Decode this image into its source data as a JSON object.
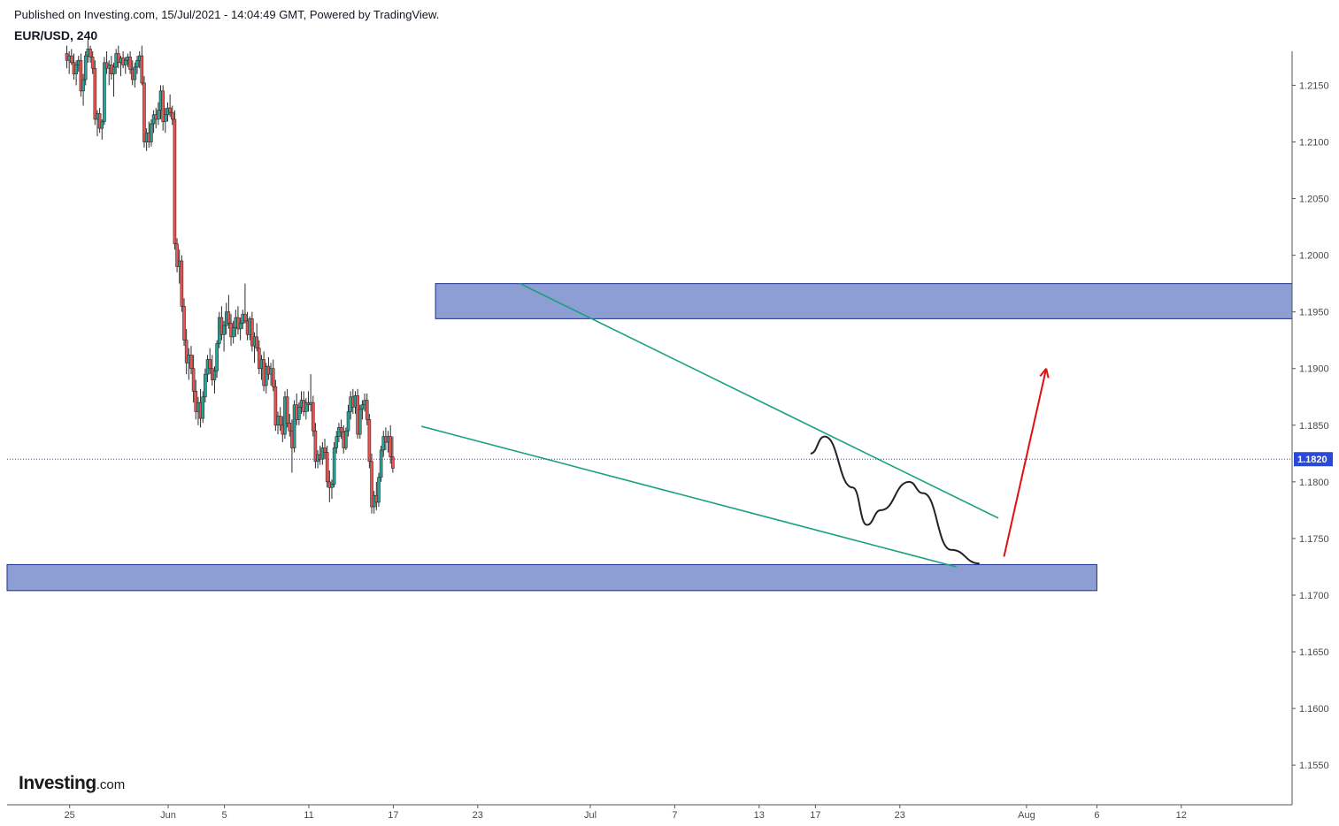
{
  "header": {
    "published": "Published on Investing.com, 15/Jul/2021 - 14:04:49 GMT, Powered by TradingView.",
    "symbol": "EUR/USD, 240"
  },
  "logo": {
    "main": "Investing",
    "suffix": ".com"
  },
  "colors": {
    "up": "#26a69a",
    "down": "#ef5350",
    "zone_fill": "#8c9ed3",
    "zone_stroke": "#1f2e8a",
    "trendline": "#1ea083",
    "projection": "#222222",
    "arrow": "#e01010",
    "price_line": "#2a49d6",
    "price_tag": "#2a49d6"
  },
  "chart_data": {
    "type": "candlestick",
    "title": "EUR/USD, 240",
    "ylim": [
      1.1515,
      1.218
    ],
    "y_ticks": [
      "1.2150",
      "1.2100",
      "1.2050",
      "1.2000",
      "1.1950",
      "1.1900",
      "1.1850",
      "1.1800",
      "1.1750",
      "1.1700",
      "1.1650",
      "1.1600",
      "1.1550"
    ],
    "x_ticks": [
      "25",
      "Jun",
      "5",
      "11",
      "17",
      "23",
      "Jul",
      "7",
      "13",
      "17",
      "23",
      "Aug",
      "6",
      "12"
    ],
    "last_price": "1.1820",
    "zones": [
      {
        "from": "Jun 20",
        "to": "end",
        "low": 1.1944,
        "high": 1.1975
      },
      {
        "from": "start",
        "to": "Aug 6",
        "low": 1.1704,
        "high": 1.1727
      }
    ],
    "trendlines": [
      {
        "from": [
          "Jun 26",
          1.1975
        ],
        "to": [
          "Jul 30",
          1.1768
        ]
      },
      {
        "from": [
          "Jun 19",
          1.1849
        ],
        "to": [
          "Jul 27",
          1.1725
        ]
      }
    ],
    "candles": [
      [
        1.2178,
        1.2185,
        1.2165,
        1.2172
      ],
      [
        1.2172,
        1.218,
        1.216,
        1.2176
      ],
      [
        1.2176,
        1.2182,
        1.2168,
        1.217
      ],
      [
        1.217,
        1.2178,
        1.2155,
        1.216
      ],
      [
        1.216,
        1.2172,
        1.215,
        1.2168
      ],
      [
        1.2168,
        1.2176,
        1.2162,
        1.2172
      ],
      [
        1.2172,
        1.2178,
        1.214,
        1.2145
      ],
      [
        1.2145,
        1.216,
        1.2132,
        1.2155
      ],
      [
        1.2155,
        1.218,
        1.215,
        1.2176
      ],
      [
        1.2176,
        1.219,
        1.217,
        1.2182
      ],
      [
        1.2182,
        1.2185,
        1.217,
        1.2175
      ],
      [
        1.2175,
        1.218,
        1.216,
        1.2165
      ],
      [
        1.2165,
        1.2172,
        1.2115,
        1.212
      ],
      [
        1.212,
        1.2128,
        1.2105,
        1.2125
      ],
      [
        1.2125,
        1.213,
        1.2108,
        1.2112
      ],
      [
        1.2112,
        1.212,
        1.2102,
        1.2118
      ],
      [
        1.2118,
        1.2175,
        1.2115,
        1.217
      ],
      [
        1.217,
        1.218,
        1.216,
        1.2165
      ],
      [
        1.2165,
        1.2172,
        1.215,
        1.2168
      ],
      [
        1.2168,
        1.2176,
        1.2155,
        1.216
      ],
      [
        1.216,
        1.217,
        1.214,
        1.2166
      ],
      [
        1.2166,
        1.2182,
        1.216,
        1.2178
      ],
      [
        1.2178,
        1.2185,
        1.2165,
        1.217
      ],
      [
        1.217,
        1.2176,
        1.2158,
        1.2174
      ],
      [
        1.2174,
        1.218,
        1.2165,
        1.2168
      ],
      [
        1.2168,
        1.2175,
        1.216,
        1.2172
      ],
      [
        1.2172,
        1.2178,
        1.2166,
        1.2175
      ],
      [
        1.2175,
        1.218,
        1.216,
        1.2164
      ],
      [
        1.2164,
        1.2172,
        1.215,
        1.2155
      ],
      [
        1.2155,
        1.217,
        1.2148,
        1.2166
      ],
      [
        1.2166,
        1.2176,
        1.216,
        1.2172
      ],
      [
        1.2172,
        1.218,
        1.2165,
        1.2176
      ],
      [
        1.2176,
        1.2185,
        1.215,
        1.2152
      ],
      [
        1.2152,
        1.2158,
        1.2095,
        1.21
      ],
      [
        1.21,
        1.2112,
        1.2092,
        1.2108
      ],
      [
        1.2108,
        1.2118,
        1.2095,
        1.21
      ],
      [
        1.21,
        1.212,
        1.2096,
        1.2116
      ],
      [
        1.2116,
        1.2128,
        1.2108,
        1.2124
      ],
      [
        1.2124,
        1.213,
        1.2112,
        1.212
      ],
      [
        1.212,
        1.2135,
        1.2115,
        1.2128
      ],
      [
        1.2128,
        1.215,
        1.212,
        1.2145
      ],
      [
        1.2145,
        1.215,
        1.211,
        1.2118
      ],
      [
        1.2118,
        1.213,
        1.2108,
        1.2124
      ],
      [
        1.2124,
        1.2135,
        1.2118,
        1.213
      ],
      [
        1.213,
        1.2142,
        1.2122,
        1.2126
      ],
      [
        1.2126,
        1.2132,
        1.2115,
        1.212
      ],
      [
        1.212,
        1.2128,
        1.2005,
        1.201
      ],
      [
        1.201,
        1.2015,
        1.1985,
        1.199
      ],
      [
        1.199,
        1.2005,
        1.1975,
        1.1995
      ],
      [
        1.1995,
        1.2,
        1.195,
        1.1955
      ],
      [
        1.1955,
        1.1962,
        1.192,
        1.1925
      ],
      [
        1.1925,
        1.1935,
        1.1895,
        1.1905
      ],
      [
        1.1905,
        1.1918,
        1.189,
        1.1912
      ],
      [
        1.1912,
        1.192,
        1.1895,
        1.19
      ],
      [
        1.19,
        1.1912,
        1.187,
        1.188
      ],
      [
        1.188,
        1.189,
        1.1855,
        1.1862
      ],
      [
        1.1862,
        1.1875,
        1.185,
        1.187
      ],
      [
        1.187,
        1.1882,
        1.1848,
        1.1856
      ],
      [
        1.1856,
        1.188,
        1.1852,
        1.1875
      ],
      [
        1.1875,
        1.19,
        1.187,
        1.1895
      ],
      [
        1.1895,
        1.1912,
        1.1888,
        1.1908
      ],
      [
        1.1908,
        1.1918,
        1.1895,
        1.19
      ],
      [
        1.19,
        1.1912,
        1.1885,
        1.189
      ],
      [
        1.189,
        1.1902,
        1.1878,
        1.1898
      ],
      [
        1.1898,
        1.1925,
        1.1892,
        1.1922
      ],
      [
        1.1922,
        1.195,
        1.1918,
        1.1945
      ],
      [
        1.1945,
        1.1955,
        1.1925,
        1.193
      ],
      [
        1.193,
        1.1942,
        1.1915,
        1.1938
      ],
      [
        1.1938,
        1.1958,
        1.193,
        1.195
      ],
      [
        1.195,
        1.1965,
        1.1935,
        1.194
      ],
      [
        1.194,
        1.1948,
        1.192,
        1.1928
      ],
      [
        1.1928,
        1.1942,
        1.1922,
        1.1936
      ],
      [
        1.1936,
        1.1952,
        1.1928,
        1.1945
      ],
      [
        1.1945,
        1.1955,
        1.193,
        1.1935
      ],
      [
        1.1935,
        1.1945,
        1.1925,
        1.194
      ],
      [
        1.194,
        1.1952,
        1.1935,
        1.1948
      ],
      [
        1.1948,
        1.1975,
        1.194,
        1.1942
      ],
      [
        1.1942,
        1.195,
        1.1925,
        1.193
      ],
      [
        1.193,
        1.1946,
        1.1925,
        1.1944
      ],
      [
        1.1944,
        1.195,
        1.1915,
        1.192
      ],
      [
        1.192,
        1.1932,
        1.1905,
        1.1928
      ],
      [
        1.1928,
        1.194,
        1.1915,
        1.1918
      ],
      [
        1.1918,
        1.1925,
        1.1895,
        1.19
      ],
      [
        1.19,
        1.1912,
        1.189,
        1.1908
      ],
      [
        1.1908,
        1.1915,
        1.188,
        1.1885
      ],
      [
        1.1885,
        1.1905,
        1.1878,
        1.1902
      ],
      [
        1.1902,
        1.191,
        1.189,
        1.1895
      ],
      [
        1.1895,
        1.1905,
        1.1885,
        1.19
      ],
      [
        1.19,
        1.1908,
        1.188,
        1.1884
      ],
      [
        1.1884,
        1.189,
        1.1845,
        1.185
      ],
      [
        1.185,
        1.1862,
        1.1842,
        1.1858
      ],
      [
        1.1858,
        1.1866,
        1.1845,
        1.185
      ],
      [
        1.185,
        1.1858,
        1.1835,
        1.1842
      ],
      [
        1.1842,
        1.188,
        1.1838,
        1.1875
      ],
      [
        1.1875,
        1.1882,
        1.1848,
        1.1852
      ],
      [
        1.1852,
        1.186,
        1.184,
        1.1845
      ],
      [
        1.1845,
        1.1855,
        1.1808,
        1.183
      ],
      [
        1.183,
        1.1872,
        1.1826,
        1.1868
      ],
      [
        1.1868,
        1.1878,
        1.185,
        1.1855
      ],
      [
        1.1855,
        1.187,
        1.185,
        1.1866
      ],
      [
        1.1866,
        1.188,
        1.186,
        1.1872
      ],
      [
        1.1872,
        1.188,
        1.1858,
        1.1862
      ],
      [
        1.1862,
        1.1874,
        1.1855,
        1.187
      ],
      [
        1.187,
        1.188,
        1.1862,
        1.1868
      ],
      [
        1.1868,
        1.1895,
        1.1862,
        1.187
      ],
      [
        1.187,
        1.1876,
        1.184,
        1.1845
      ],
      [
        1.1845,
        1.1852,
        1.1812,
        1.1818
      ],
      [
        1.1818,
        1.1828,
        1.1812,
        1.1824
      ],
      [
        1.1824,
        1.1832,
        1.1815,
        1.182
      ],
      [
        1.182,
        1.1835,
        1.1815,
        1.183
      ],
      [
        1.183,
        1.1838,
        1.182,
        1.1826
      ],
      [
        1.1826,
        1.1832,
        1.1795,
        1.18
      ],
      [
        1.18,
        1.181,
        1.1782,
        1.1795
      ],
      [
        1.1795,
        1.1802,
        1.1785,
        1.1798
      ],
      [
        1.1798,
        1.1835,
        1.1795,
        1.183
      ],
      [
        1.183,
        1.1845,
        1.1825,
        1.184
      ],
      [
        1.184,
        1.1852,
        1.1835,
        1.1848
      ],
      [
        1.1848,
        1.1855,
        1.1838,
        1.1844
      ],
      [
        1.1844,
        1.185,
        1.1825,
        1.183
      ],
      [
        1.183,
        1.1848,
        1.1828,
        1.1845
      ],
      [
        1.1845,
        1.1868,
        1.184,
        1.1862
      ],
      [
        1.1862,
        1.188,
        1.1855,
        1.1875
      ],
      [
        1.1875,
        1.1882,
        1.186,
        1.1866
      ],
      [
        1.1866,
        1.188,
        1.186,
        1.1876
      ],
      [
        1.1876,
        1.1882,
        1.1838,
        1.1842
      ],
      [
        1.1842,
        1.1868,
        1.1838,
        1.1864
      ],
      [
        1.1864,
        1.1872,
        1.1855,
        1.1868
      ],
      [
        1.1868,
        1.1878,
        1.1862,
        1.1872
      ],
      [
        1.1872,
        1.1878,
        1.185,
        1.1855
      ],
      [
        1.1855,
        1.186,
        1.1812,
        1.1818
      ],
      [
        1.1818,
        1.1825,
        1.1772,
        1.1778
      ],
      [
        1.1778,
        1.1792,
        1.1772,
        1.1788
      ],
      [
        1.1788,
        1.18,
        1.1775,
        1.1782
      ],
      [
        1.1782,
        1.1808,
        1.1778,
        1.1804
      ],
      [
        1.1804,
        1.1832,
        1.18,
        1.1828
      ],
      [
        1.1828,
        1.1845,
        1.1822,
        1.184
      ],
      [
        1.184,
        1.1848,
        1.1828,
        1.1835
      ],
      [
        1.1835,
        1.1845,
        1.1826,
        1.184
      ],
      [
        1.184,
        1.185,
        1.1816,
        1.1822
      ],
      [
        1.1822,
        1.184,
        1.1808,
        1.1812
      ]
    ]
  }
}
